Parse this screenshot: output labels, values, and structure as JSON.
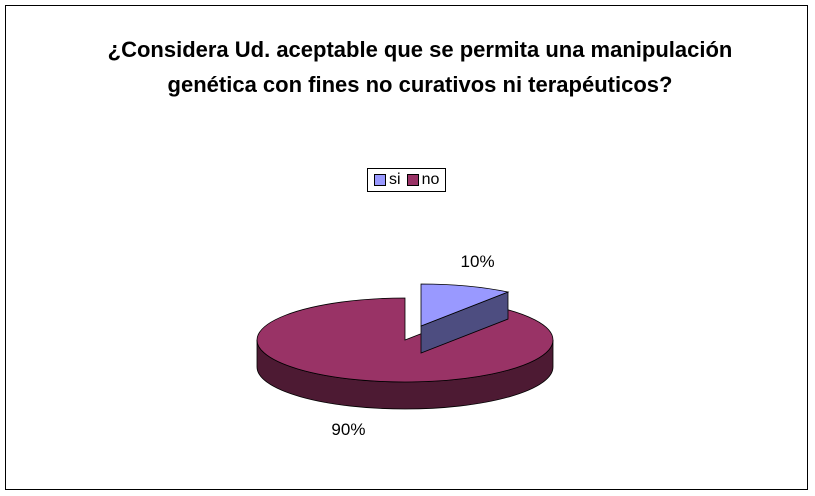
{
  "chart_data": {
    "type": "pie",
    "title": "¿Considera Ud. aceptable que se permita una manipulación genética con fines no curativos ni terapéuticos?",
    "categories": [
      "si",
      "no"
    ],
    "values": [
      10,
      90
    ],
    "value_labels": [
      "10%",
      "90%"
    ],
    "colors": [
      "#9999ff",
      "#993366"
    ],
    "legend": "top"
  }
}
